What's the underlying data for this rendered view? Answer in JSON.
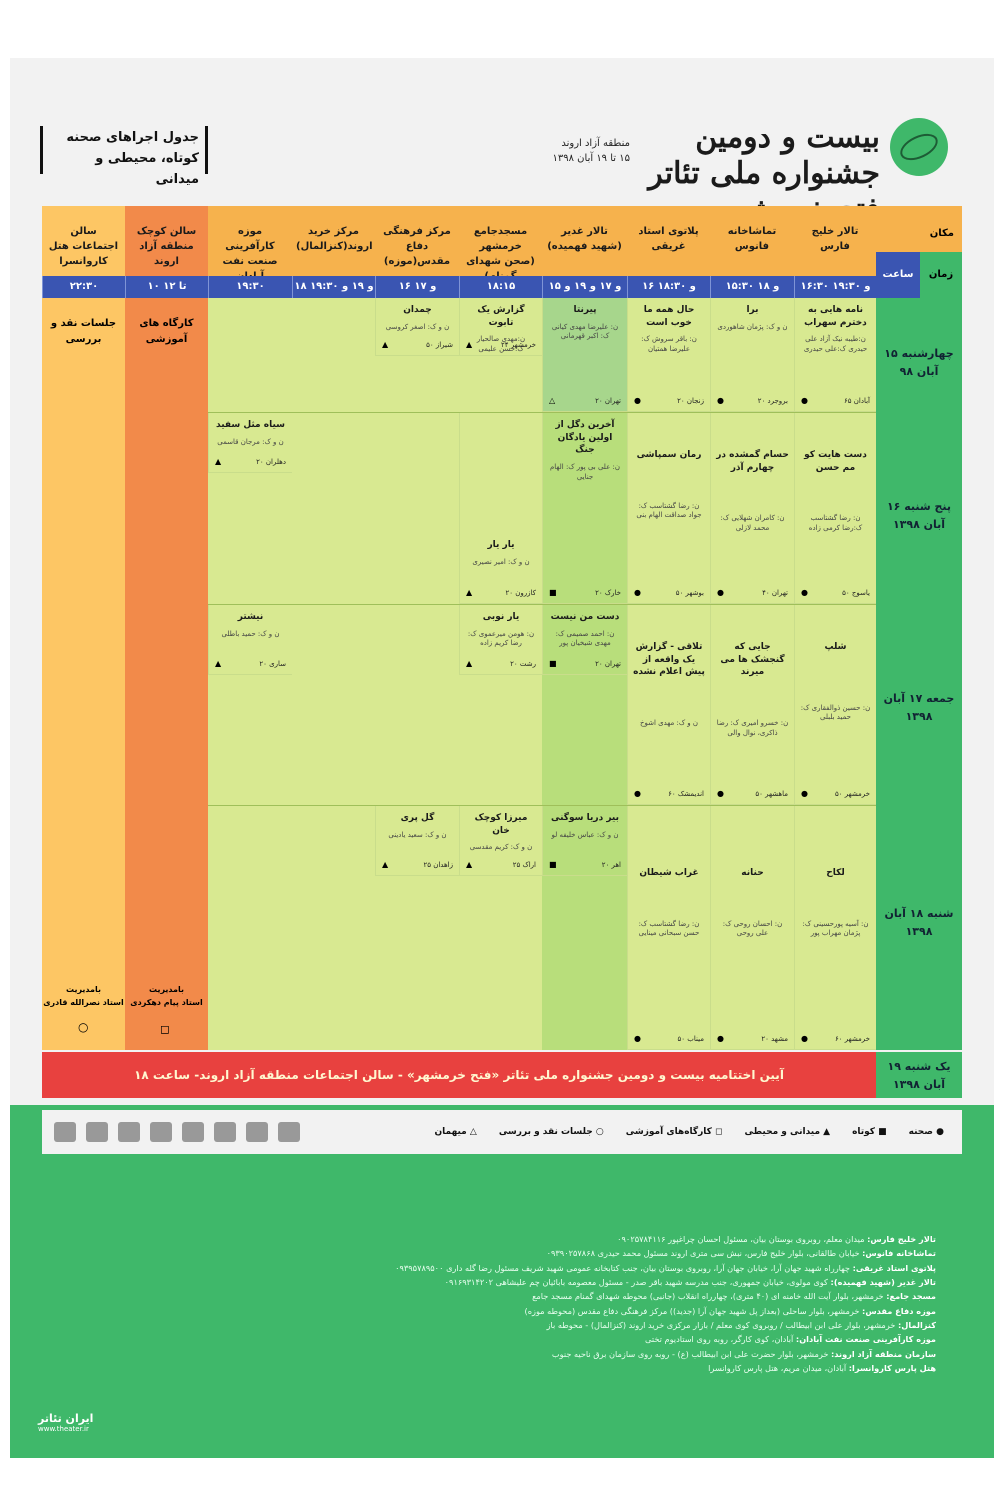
{
  "header": {
    "festival_title": "بیست و دومین جشنواره ملی تئاتر فتح خرمشهر",
    "region": "منطقه آزاد اروند",
    "dates": "۱۵ تا ۱۹ آبان ۱۳۹۸",
    "table_title_line1": "جدول اجراهای صحنه",
    "table_title_line2": "کوتاه، محیطی و میدانی"
  },
  "labels": {
    "place": "مکان",
    "time": "زمان",
    "hour": "ساعت"
  },
  "venues": [
    {
      "name": "تالار خلیج فارس",
      "time": "۱۶:۳۰ و ۱۹:۳۰"
    },
    {
      "name": "تماشاخانه فانوس",
      "time": "۱۵:۳۰ و ۱۸"
    },
    {
      "name": "پلاتوی استاد غریقی",
      "time": "۱۶ و ۱۸:۳۰"
    },
    {
      "name": "تالار غدیر (شهید فهمیده)",
      "time": "۱۵ و ۱۷ و ۱۹ و ۲۰:۳۰"
    },
    {
      "name": "مسجدجامع خرمشهر (صحن شهدای گمنام)",
      "time": "۱۸:۱۵"
    },
    {
      "name": "مرکز فرهنگی دفاع مقدس(موزه)",
      "time": "۱۶ و ۱۷"
    },
    {
      "name": "مرکز خرید اروند(کنزالمال)",
      "time": "۱۸ و ۱۹ و ۱۹:۳۰"
    },
    {
      "name": "موزه کارآفرینی صنعت نفت آبادان",
      "time": "۱۹:۳۰"
    },
    {
      "name": "سالن کوچک منطقه آزاد اروند",
      "time": "۱۰ تا ۱۲"
    },
    {
      "name": "سالن اجتماعات هتل کاروانسرا",
      "time": "۲۲:۳۰"
    }
  ],
  "days": [
    {
      "label": "چهارشنبه ۱۵ آبان ۹۸"
    },
    {
      "label": "پنج شنبه ۱۶ آبان ۱۳۹۸"
    },
    {
      "label": "جمعه ۱۷ آبان ۱۳۹۸"
    },
    {
      "label": "شنبه ۱۸ آبان ۱۳۹۸"
    },
    {
      "label": "یک شنبه ۱۹ آبان ۱۳۹۸"
    }
  ],
  "shows": {
    "d1": [
      {
        "title": "نامه هایی به دخترم سهراب",
        "cred": "ن:طیبه نیک آزاد علی حیدری ک:علی حیدری",
        "city": "آبادان ۶۵"
      },
      {
        "title": "برا",
        "cred": "ن و ک: پژمان شاهوردی",
        "city": "بروجرد ۲۰"
      },
      {
        "title": "حال همه ما خوب است",
        "cred": "ن: باقر سروش ک: علیرضا همتیان",
        "city": "زنجان ۲۰"
      },
      {
        "title": "پیرنتا",
        "cred": "ن: علیرضا مهدی کیانی ک: اکبر قهرمانی",
        "city": "تهران ۲۰"
      },
      {
        "title": "گزارش یک تابوت",
        "cred": "ن:مهدی صالحیار ک:حسن علیمی",
        "city": "خرمشهر ۲۴"
      },
      {
        "title": "چمدان",
        "cred": "ن و ک: اصغر کروسی",
        "city": "شیراز ۵۰"
      }
    ],
    "d2": [
      {
        "title": "دست هایت کو مم حسن",
        "cred": "ن: رضا گشتاسب ک:رضا کرمی زاده",
        "city": "یاسوج ۵۰"
      },
      {
        "title": "حسام گمشده در چهارم آذر",
        "cred": "ن: کامران شهلایی ک: محمد لازلی",
        "city": "تهران ۴۰"
      },
      {
        "title": "رمان سمپاشی",
        "cred": "ن: رضا گشتاسب ک: جواد صداقت الهام بنی",
        "city": "بوشهر ۵۰"
      },
      {
        "title": "آخرین دگل از اولین یادگان جنگ",
        "cred": "ن: علی بی پور ک: الهام جنایی",
        "city": "خارک ۲۰"
      },
      {
        "title": "یار یار",
        "cred": "ن و ک: امیر نصیری",
        "city": "کازرون ۲۰"
      },
      {
        "title": "سیاه مثل سفید",
        "cred": "ن و ک: مرجان قاسمی",
        "city": "دهلران ۲۰"
      }
    ],
    "d3": [
      {
        "title": "شلپ",
        "cred": "ن: حسین ذوالفقاری ک: حمید بلبلی",
        "city": "خرمشهر ۵۰"
      },
      {
        "title": "جایی که گنجشک ها می میرند",
        "cred": "ن: خسرو امیری ک: رضا ذاکری، نوال والی",
        "city": "ماهشهر ۵۰"
      },
      {
        "title": "تلاقی - گزارش یک واقعه از پیش اعلام نشده",
        "cred": "ن و ک: مهدی اشوخ",
        "city": "اندیمشک ۶۰"
      },
      {
        "title": "دست من نیست",
        "cred": "ن: احمد صمیمی ک: مهدی شیخیان پور",
        "city": "تهران ۲۰"
      },
      {
        "title": "یار نوبی",
        "cred": "ن: هومن میرعموی ک: رضا کریم زاده",
        "city": "رشت ۲۰"
      },
      {
        "title": "نیشتر",
        "cred": "ن و ک: حمید باطلی",
        "city": "ساری ۲۰"
      }
    ],
    "d4": [
      {
        "title": "لکاح",
        "cred": "ن: آسیه پورحسینی ک: پژمان مهراب پور",
        "city": "خرمشهر ۶۰"
      },
      {
        "title": "حنانه",
        "cred": "ن: احسان روحی ک: علی روحی",
        "city": "مشهد ۲۰"
      },
      {
        "title": "غراب شیطان",
        "cred": "ن: رضا گشتاسب ک: حسن سبحانی مینایی",
        "city": "میناب ۵۰"
      },
      {
        "title": "بیر دریا سوگنی",
        "cred": "ن و ک: عباس خلیفه لو",
        "city": "اهر ۲۰"
      },
      {
        "title": "میرزا کوچک خان",
        "cred": "ن و ک: کریم مقدسی",
        "city": "اراک ۲۵"
      },
      {
        "title": "گل پری",
        "cred": "ن و ک: سعید یادینی",
        "city": "زاهدان ۲۵"
      }
    ]
  },
  "workshop": {
    "title": "کارگاه های آموزشی",
    "manager_label": "بامدیریت",
    "manager": "استاد پیام دهکردی"
  },
  "review": {
    "title": "جلسات نقد و بررسی",
    "manager_label": "بامدیریت",
    "manager": "استاد نصرالله قادری"
  },
  "closing": "آیین اختتامیه بیست و دومین جشنواره ملی تئاتر «فتح خرمشهر» - سالن اجتماعات منطقه آزاد اروند- ساعت ۱۸",
  "legend": {
    "stage": "صحنه",
    "short": "کوتاه",
    "field": "میدانی و محیطی",
    "workshop": "کارگاه‌های آموزشی",
    "review": "جلسات نقد و بررسی",
    "guest": "میهمان"
  },
  "addresses": [
    {
      "venue": "تالار خلیج فارس:",
      "text": "میدان معلم، روبروی بوستان بیان، مسئول احسان چراغپور ۰۹۰۲۵۷۸۴۱۱۶"
    },
    {
      "venue": "تماشاخانه فانوس:",
      "text": "خیابان طالقانی، بلوار خلیج فارس، نبش سی متری اروند مسئول محمد حیدری ۰۹۳۹۰۲۵۷۸۶۸"
    },
    {
      "venue": "پلاتوی استاد غریقی:",
      "text": "چهارراه شهید جهان آرا، خیابان جهان آرا، روبروی بوستان بیان، جنب کتابخانه عمومی شهید شریف مسئول رضا گله داری ۰۹۳۹۵۷۸۹۵۰۰"
    },
    {
      "venue": "تالار غدیر (شهید فهمیده):",
      "text": "کوی مولوی، خیابان جمهوری، جنب مدرسه شهید باقر صدر - مسئول معصومه بابائیان چم علیشاهی ۰۹۱۶۹۳۱۴۲۰۲"
    },
    {
      "venue": "مسجد جامع:",
      "text": "خرمشهر، بلوار آیت الله خامنه ای (۴۰ متری)، چهارراه انقلاب (جانبی) محوطه شهدای گمنام مسجد جامع"
    },
    {
      "venue": "موزه دفاع مقدس:",
      "text": "خرمشهر، بلوار ساحلی (بعداز پل شهید جهان آرا (جدید)) مرکز فرهنگی دفاع مقدس (محوطه موزه)"
    },
    {
      "venue": "کنزالمال:",
      "text": "خرمشهر، بلوار علی ابن ابیطالب / روبروی کوی معلم / بازار مرکزی خرید اروند (کنزالمال) - محوطه باز"
    },
    {
      "venue": "موزه کارآفرینی صنعت نفت آبادان:",
      "text": "آبادان، کوی کارگر، روبه روی استادیوم تختی"
    },
    {
      "venue": "سازمان منطقه آزاد اروند:",
      "text": "خرمشهر، بلوار حضرت علی ابن ابیطالب (ع) - روبه روی سازمان برق ناحیه جنوب"
    },
    {
      "venue": "هتل پارس کاروانسرا:",
      "text": "آبادان، میدان مریم، هتل پارس کاروانسرا"
    }
  ],
  "footer_brand": "ایران تئاتر",
  "footer_url": "www.theater.ir"
}
